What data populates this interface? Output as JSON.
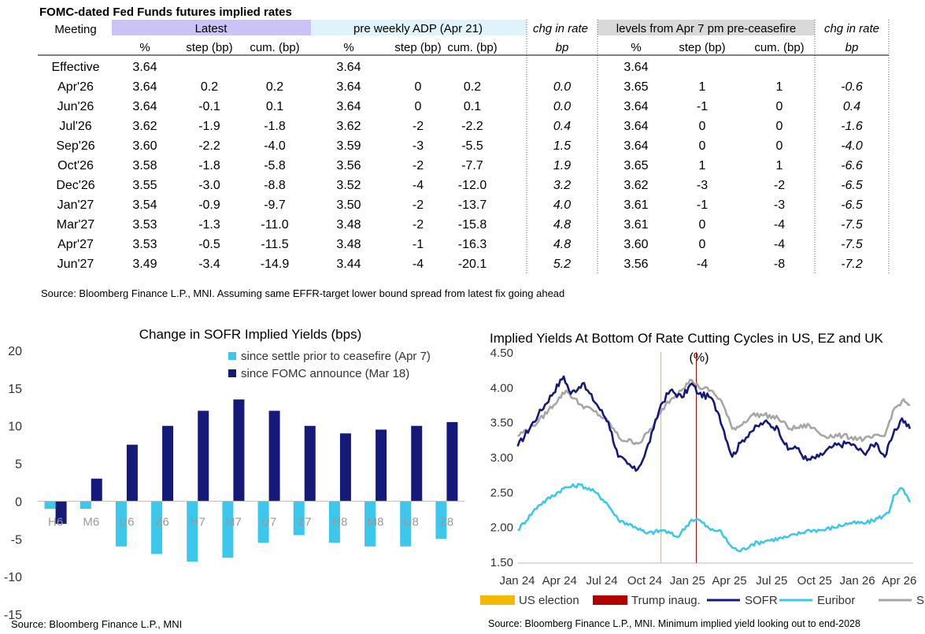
{
  "table": {
    "title": "FOMC-dated Fed Funds futures implied rates",
    "meeting_header": "Meeting",
    "groups": [
      "Latest",
      "pre weekly ADP (Apr 21)",
      "chg in rate",
      "levels from Apr 7 pm pre-ceasefire",
      "chg in rate"
    ],
    "subheaders": [
      "%",
      "step (bp)",
      "cum. (bp)",
      "%",
      "step (bp)",
      "cum. (bp)",
      "bp",
      "%",
      "step (bp)",
      "cum. (bp)",
      "bp"
    ],
    "rows": [
      [
        "Effective",
        "3.64",
        "",
        "",
        "3.64",
        "",
        "",
        "",
        "3.64",
        "",
        "",
        ""
      ],
      [
        "Apr'26",
        "3.64",
        "0.2",
        "0.2",
        "3.64",
        "0",
        "0.2",
        "0.0",
        "3.65",
        "1",
        "1",
        "-0.6"
      ],
      [
        "Jun'26",
        "3.64",
        "-0.1",
        "0.1",
        "3.64",
        "0",
        "0.1",
        "0.0",
        "3.64",
        "-1",
        "0",
        "0.4"
      ],
      [
        "Jul'26",
        "3.62",
        "-1.9",
        "-1.8",
        "3.62",
        "-2",
        "-2.2",
        "0.4",
        "3.64",
        "0",
        "0",
        "-1.6"
      ],
      [
        "Sep'26",
        "3.60",
        "-2.2",
        "-4.0",
        "3.59",
        "-3",
        "-5.5",
        "1.5",
        "3.64",
        "0",
        "0",
        "-4.0"
      ],
      [
        "Oct'26",
        "3.58",
        "-1.8",
        "-5.8",
        "3.56",
        "-2",
        "-7.7",
        "1.9",
        "3.65",
        "1",
        "1",
        "-6.6"
      ],
      [
        "Dec'26",
        "3.55",
        "-3.0",
        "-8.8",
        "3.52",
        "-4",
        "-12.0",
        "3.2",
        "3.62",
        "-3",
        "-2",
        "-6.5"
      ],
      [
        "Jan'27",
        "3.54",
        "-0.9",
        "-9.7",
        "3.50",
        "-2",
        "-13.7",
        "4.0",
        "3.61",
        "-1",
        "-3",
        "-6.5"
      ],
      [
        "Mar'27",
        "3.53",
        "-1.3",
        "-11.0",
        "3.48",
        "-2",
        "-15.8",
        "4.8",
        "3.61",
        "0",
        "-4",
        "-7.5"
      ],
      [
        "Apr'27",
        "3.53",
        "-0.5",
        "-11.5",
        "3.48",
        "-1",
        "-16.3",
        "4.8",
        "3.60",
        "0",
        "-4",
        "-7.5"
      ],
      [
        "Jun'27",
        "3.49",
        "-3.4",
        "-14.9",
        "3.44",
        "-4",
        "-20.1",
        "5.2",
        "3.56",
        "-4",
        "-8",
        "-7.2"
      ]
    ],
    "source": "Source: Bloomberg Finance L.P., MNI. Assuming same  EFFR-target lower bound spread from latest fix going ahead",
    "colors": {
      "latest": "#c9c4f5",
      "pre_adp": "#dff3fb",
      "levels": "#d9d9d9"
    }
  },
  "chart_data": [
    {
      "type": "bar",
      "title": "Change in SOFR Implied Yields (bps)",
      "categories": [
        "H6",
        "M6",
        "U6",
        "Z6",
        "H7",
        "M7",
        "U7",
        "Z7",
        "H8",
        "M8",
        "U8",
        "Z8"
      ],
      "series": [
        {
          "name": "since settle prior to ceasefire (Apr 7)",
          "color": "#3cc8ec",
          "values": [
            -1,
            -1,
            -6,
            -7,
            -8,
            -7.5,
            -5.5,
            -4.5,
            -5.5,
            -6,
            -6,
            -5
          ]
        },
        {
          "name": "since FOMC announce (Mar 18)",
          "color": "#14197a",
          "values": [
            -3,
            3,
            7.5,
            10,
            12,
            13.5,
            12,
            10,
            9,
            9.5,
            10,
            10.5
          ]
        }
      ],
      "ylim": [
        -15,
        20
      ],
      "yticks": [
        "-15",
        "-10",
        "-5",
        "0",
        "5",
        "10",
        "15",
        "20"
      ],
      "legend": "top-right",
      "source": "Source: Bloomberg Finance L.P., MNI"
    },
    {
      "type": "line",
      "title": "Implied Yields At Bottom Of Rate Cutting Cycles in US, EZ and UK",
      "unit_label": "(%)",
      "xticks": [
        "Jan 24",
        "Apr 24",
        "Jul 24",
        "Oct 24",
        "Jan 25",
        "Apr 25",
        "Jul 25",
        "Oct 25",
        "Jan 26",
        "Apr 26"
      ],
      "yticks": [
        "1.50",
        "2.00",
        "2.50",
        "3.00",
        "3.50",
        "4.00",
        "4.50"
      ],
      "ylim": [
        1.5,
        4.5
      ],
      "vlines": [
        {
          "name": "US election",
          "date": "2024-11-05",
          "color": "#f5b800"
        },
        {
          "name": "Trump inaug.",
          "date": "2025-01-20",
          "color": "#b00000"
        }
      ],
      "series": [
        {
          "name": "SOFR",
          "color": "#14197a",
          "x": [
            "2024-01-02",
            "2024-02-15",
            "2024-04-10",
            "2024-04-25",
            "2024-05-20",
            "2024-06-20",
            "2024-07-15",
            "2024-08-05",
            "2024-08-25",
            "2024-09-12",
            "2024-09-30",
            "2024-10-20",
            "2024-11-05",
            "2024-11-25",
            "2024-12-20",
            "2025-01-10",
            "2025-01-25",
            "2025-02-20",
            "2025-03-10",
            "2025-04-07",
            "2025-04-25",
            "2025-05-15",
            "2025-06-15",
            "2025-07-15",
            "2025-08-05",
            "2025-08-20",
            "2025-09-15",
            "2025-10-10",
            "2025-11-10",
            "2025-12-15",
            "2026-01-15",
            "2026-02-10",
            "2026-03-01",
            "2026-03-18",
            "2026-04-07",
            "2026-04-24"
          ],
          "y": [
            3.15,
            3.6,
            4.15,
            3.9,
            4.05,
            3.75,
            3.5,
            3.0,
            2.9,
            2.8,
            3.0,
            3.4,
            3.75,
            3.95,
            3.85,
            4.05,
            3.9,
            3.85,
            3.6,
            3.0,
            3.2,
            3.35,
            3.5,
            3.4,
            3.1,
            3.15,
            2.95,
            3.0,
            3.15,
            3.2,
            3.05,
            3.2,
            3.0,
            3.3,
            3.55,
            3.4
          ]
        },
        {
          "name": "Euribor",
          "color": "#3cc8ec",
          "x": [
            "2024-01-02",
            "2024-02-15",
            "2024-04-10",
            "2024-05-15",
            "2024-06-15",
            "2024-07-10",
            "2024-08-05",
            "2024-09-10",
            "2024-10-05",
            "2024-11-10",
            "2024-12-10",
            "2025-01-10",
            "2025-01-25",
            "2025-02-20",
            "2025-03-10",
            "2025-04-07",
            "2025-04-25",
            "2025-05-20",
            "2025-06-20",
            "2025-08-05",
            "2025-09-20",
            "2025-10-20",
            "2025-12-15",
            "2026-01-20",
            "2026-02-25",
            "2026-03-10",
            "2026-03-20",
            "2026-04-07",
            "2026-04-24"
          ],
          "y": [
            1.95,
            2.3,
            2.55,
            2.6,
            2.5,
            2.35,
            2.1,
            2.0,
            1.9,
            1.95,
            1.85,
            2.1,
            2.1,
            1.95,
            1.95,
            1.7,
            1.65,
            1.75,
            1.8,
            1.85,
            1.95,
            1.95,
            2.05,
            2.05,
            2.15,
            2.2,
            2.45,
            2.55,
            2.35
          ]
        },
        {
          "name": "SONIA",
          "color": "#a6a6a6",
          "x": [
            "2024-01-02",
            "2024-02-15",
            "2024-04-15",
            "2024-05-15",
            "2024-06-15",
            "2024-07-15",
            "2024-08-10",
            "2024-09-20",
            "2024-10-20",
            "2024-11-15",
            "2024-12-15",
            "2025-01-10",
            "2025-01-25",
            "2025-02-20",
            "2025-03-15",
            "2025-04-07",
            "2025-04-25",
            "2025-05-20",
            "2025-06-15",
            "2025-07-15",
            "2025-08-10",
            "2025-09-20",
            "2025-10-20",
            "2025-12-01",
            "2026-01-15",
            "2026-02-20",
            "2026-03-01",
            "2026-03-18",
            "2026-04-07",
            "2026-04-24"
          ],
          "y": [
            3.3,
            3.5,
            3.95,
            3.75,
            3.65,
            3.5,
            3.25,
            3.2,
            3.45,
            3.75,
            3.95,
            4.1,
            4.0,
            3.95,
            3.8,
            3.4,
            3.45,
            3.6,
            3.6,
            3.55,
            3.4,
            3.45,
            3.3,
            3.3,
            3.25,
            3.3,
            3.3,
            3.65,
            3.8,
            3.75
          ]
        }
      ],
      "legend": "bottom",
      "source": "Source: Bloomberg Finance L.P., MNI. Minimum implied yield looking out to end-2028"
    }
  ]
}
